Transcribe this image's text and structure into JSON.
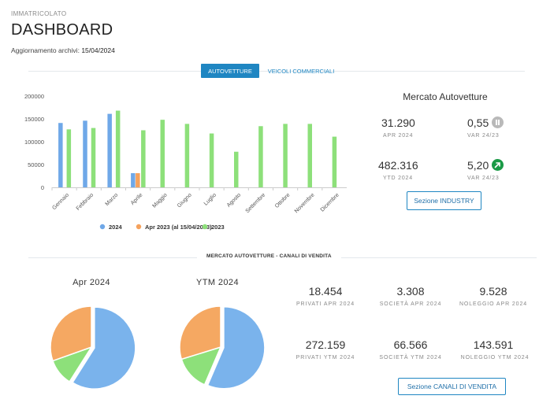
{
  "header": {
    "kicker": "IMMATRICOLATO",
    "title": "DASHBOARD",
    "updated_label": "Aggiornamento archivi:",
    "updated_date": "15/04/2024"
  },
  "tabs": [
    {
      "label": "AUTOVETTURE",
      "active": true
    },
    {
      "label": "VEICOLI COMMERCIALI",
      "active": false
    }
  ],
  "chart_data": {
    "type": "bar",
    "categories": [
      "Gennaio",
      "Febbraio",
      "Marzo",
      "Aprile",
      "Maggio",
      "Giugno",
      "Luglio",
      "Agosto",
      "Settembre",
      "Ottobre",
      "Novembre",
      "Dicembre"
    ],
    "series": [
      {
        "name": "2024",
        "color": "#6fa8e8",
        "values": [
          141000,
          146000,
          161000,
          31000,
          null,
          null,
          null,
          null,
          null,
          null,
          null,
          null
        ]
      },
      {
        "name": "Apr 2023 (al 15/04/2023)",
        "color": "#f5a25d",
        "values": [
          null,
          null,
          null,
          31000,
          null,
          null,
          null,
          null,
          null,
          null,
          null,
          null
        ]
      },
      {
        "name": "2023",
        "color": "#8de07a",
        "values": [
          127000,
          130000,
          168000,
          125000,
          148000,
          139000,
          118000,
          78000,
          134000,
          139000,
          139000,
          111000
        ]
      }
    ],
    "ylim": [
      0,
      200000
    ],
    "yticks": [
      "0",
      "50000",
      "100000",
      "150000",
      "200000"
    ],
    "legend_position": "bottom",
    "grid": false
  },
  "market": {
    "title": "Mercato Autovetture",
    "kpis": [
      {
        "value": "31.290",
        "label": "APR 2024"
      },
      {
        "value": "0,55",
        "label": "VAR 24/23",
        "icon": "pause-icon"
      },
      {
        "value": "482.316",
        "label": "YTD 2024"
      },
      {
        "value": "5,20",
        "label": "VAR 24/23",
        "icon": "arrow-up-right-icon"
      }
    ],
    "button": "Sezione INDUSTRY"
  },
  "channels": {
    "section_title": "MERCATO AUTOVETTURE - CANALI DI VENDITA",
    "pies": [
      {
        "title": "Apr 2024",
        "slices": [
          {
            "name": "Privati",
            "value": 18454,
            "color": "#7ab3ec"
          },
          {
            "name": "Società",
            "value": 3308,
            "color": "#8de07a"
          },
          {
            "name": "Noleggio",
            "value": 9528,
            "color": "#f5a862"
          }
        ]
      },
      {
        "title": "YTM 2024",
        "slices": [
          {
            "name": "Privati",
            "value": 272159,
            "color": "#7ab3ec"
          },
          {
            "name": "Società",
            "value": 66566,
            "color": "#8de07a"
          },
          {
            "name": "Noleggio",
            "value": 143591,
            "color": "#f5a862"
          }
        ]
      }
    ],
    "stats": [
      {
        "value": "18.454",
        "label": "PRIVATI APR 2024"
      },
      {
        "value": "3.308",
        "label": "SOCIETÀ APR 2024"
      },
      {
        "value": "9.528",
        "label": "NOLEGGIO APR 2024"
      },
      {
        "value": "272.159",
        "label": "PRIVATI YTM 2024"
      },
      {
        "value": "66.566",
        "label": "SOCIETÀ YTM 2024"
      },
      {
        "value": "143.591",
        "label": "NOLEGGIO YTM 2024"
      }
    ],
    "button": "Sezione CANALI DI VENDITA"
  }
}
